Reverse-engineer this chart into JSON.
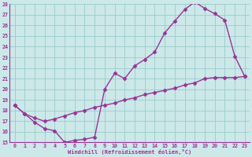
{
  "xlabel": "Windchill (Refroidissement éolien,°C)",
  "bg_color": "#cce8e8",
  "grid_color": "#99cccc",
  "line_color": "#993399",
  "marker": "D",
  "markersize": 2.5,
  "linewidth": 1.0,
  "xlim": [
    -0.5,
    23.5
  ],
  "ylim": [
    15,
    28
  ],
  "xticks": [
    0,
    1,
    2,
    3,
    4,
    5,
    6,
    7,
    8,
    9,
    10,
    11,
    12,
    13,
    14,
    15,
    16,
    17,
    18,
    19,
    20,
    21,
    22,
    23
  ],
  "yticks": [
    15,
    16,
    17,
    18,
    19,
    20,
    21,
    22,
    23,
    24,
    25,
    26,
    27,
    28
  ],
  "line1_x": [
    0,
    1,
    2,
    3,
    4,
    5,
    6,
    7,
    8,
    9,
    10,
    11,
    12,
    13,
    14,
    15,
    16,
    17,
    18,
    19,
    20,
    21,
    22,
    23
  ],
  "line1_y": [
    18.5,
    17.7,
    16.9,
    16.3,
    16.1,
    15.0,
    15.2,
    15.3,
    15.5,
    20.0,
    21.5,
    21.0,
    22.2,
    22.8,
    23.5,
    25.3,
    26.4,
    27.5,
    28.2,
    27.6,
    27.1,
    26.5,
    23.1,
    21.2
  ],
  "line2_x": [
    0,
    1,
    2,
    3,
    4,
    5,
    6,
    7,
    8,
    9,
    10,
    11,
    12,
    13,
    14,
    15,
    16,
    17,
    18,
    19,
    20,
    21,
    22,
    23
  ],
  "line2_y": [
    18.5,
    17.7,
    17.3,
    17.0,
    17.2,
    17.5,
    17.8,
    18.0,
    18.3,
    18.5,
    18.7,
    19.0,
    19.2,
    19.5,
    19.7,
    19.9,
    20.1,
    20.4,
    20.6,
    21.0,
    21.1,
    21.1,
    21.1,
    21.2
  ]
}
